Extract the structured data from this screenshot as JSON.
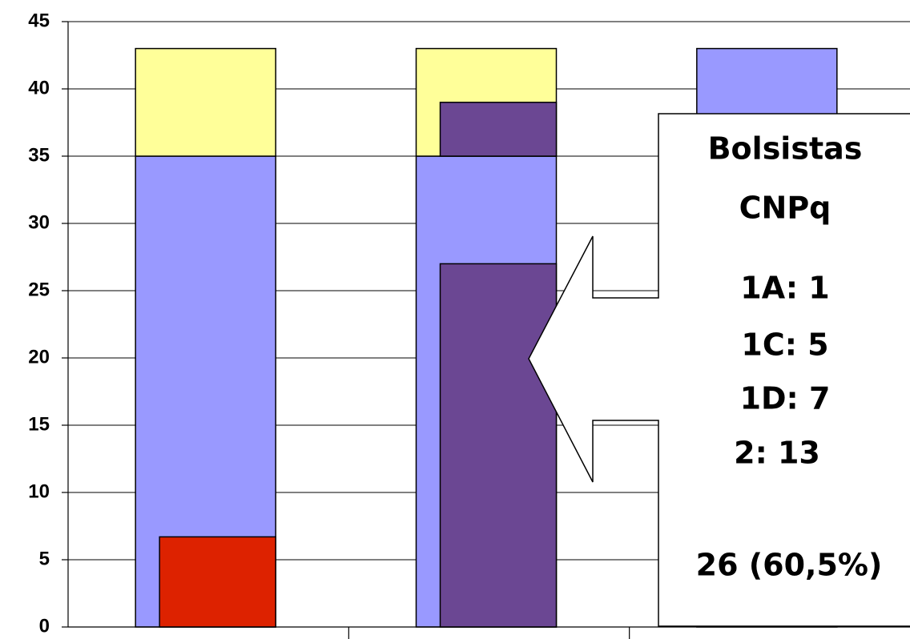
{
  "chart_data": {
    "type": "bar",
    "categories": [
      null,
      null,
      null
    ],
    "series": [
      {
        "color": "#9999ff",
        "values": [
          35,
          35,
          43
        ]
      },
      {
        "color": "#ffff99",
        "values": [
          8,
          8,
          null
        ]
      }
    ],
    "overlay_series": [
      {
        "color": "#dd2200",
        "values": [
          6.7,
          null,
          null
        ]
      },
      {
        "color": "#6b4793",
        "values": [
          null,
          27,
          null
        ]
      },
      {
        "color": "#6b4793",
        "low": [
          null,
          35,
          null
        ],
        "high": [
          null,
          39,
          null
        ]
      }
    ],
    "ylim": [
      0,
      45
    ],
    "yticks": [
      0,
      5,
      10,
      15,
      20,
      25,
      30,
      35,
      40,
      45
    ],
    "grid": true,
    "annotations": [
      "Bolsistas",
      "CNPq",
      "1A: 1",
      "1C: 5",
      "1D: 7",
      "2: 13",
      "26 (60,5%)"
    ]
  }
}
